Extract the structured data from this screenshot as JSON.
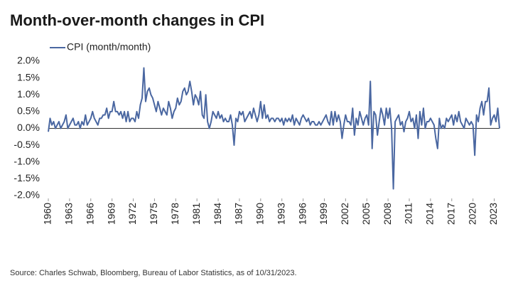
{
  "chart_data": {
    "type": "line",
    "title": "Month-over-month changes in CPI",
    "source": "Source: Charles Schwab, Bloomberg, Bureau of Labor Statistics, as of 10/31/2023.",
    "xlim": [
      1960,
      2023.75
    ],
    "xticks": [
      1960,
      1963,
      1966,
      1969,
      1972,
      1975,
      1978,
      1981,
      1984,
      1987,
      1990,
      1993,
      1996,
      1999,
      2002,
      2005,
      2008,
      2011,
      2014,
      2017,
      2020,
      2023
    ],
    "ylim": [
      -2.0,
      2.0
    ],
    "yticks": [
      {
        "value": 2.0,
        "label": "2.0%"
      },
      {
        "value": 1.5,
        "label": "1.5%"
      },
      {
        "value": 1.0,
        "label": "1.0%"
      },
      {
        "value": 0.5,
        "label": "0.5%"
      },
      {
        "value": 0.0,
        "label": "0.0%"
      },
      {
        "value": -0.5,
        "label": "-0.5%"
      },
      {
        "value": -1.0,
        "label": "-1.0%"
      },
      {
        "value": -1.5,
        "label": "-1.5%"
      },
      {
        "value": -2.0,
        "label": "-2.0%"
      }
    ],
    "legend": "top-left",
    "series": [
      {
        "name": "CPI (month/month)",
        "color": "#4a67a1",
        "x": [
          1960,
          1960.25,
          1960.5,
          1960.75,
          1961,
          1961.25,
          1961.5,
          1961.75,
          1962,
          1962.25,
          1962.5,
          1962.75,
          1963,
          1963.25,
          1963.5,
          1963.75,
          1964,
          1964.25,
          1964.5,
          1964.75,
          1965,
          1965.25,
          1965.5,
          1965.75,
          1966,
          1966.25,
          1966.5,
          1966.75,
          1967,
          1967.25,
          1967.5,
          1967.75,
          1968,
          1968.25,
          1968.5,
          1968.75,
          1969,
          1969.25,
          1969.5,
          1969.75,
          1970,
          1970.25,
          1970.5,
          1970.75,
          1971,
          1971.25,
          1971.5,
          1971.75,
          1972,
          1972.25,
          1972.5,
          1972.75,
          1973,
          1973.25,
          1973.5,
          1973.75,
          1974,
          1974.25,
          1974.5,
          1974.75,
          1975,
          1975.25,
          1975.5,
          1975.75,
          1976,
          1976.25,
          1976.5,
          1976.75,
          1977,
          1977.25,
          1977.5,
          1977.75,
          1978,
          1978.25,
          1978.5,
          1978.75,
          1979,
          1979.25,
          1979.5,
          1979.75,
          1980,
          1980.25,
          1980.5,
          1980.75,
          1981,
          1981.25,
          1981.5,
          1981.75,
          1982,
          1982.25,
          1982.5,
          1982.75,
          1983,
          1983.25,
          1983.5,
          1983.75,
          1984,
          1984.25,
          1984.5,
          1984.75,
          1985,
          1985.25,
          1985.5,
          1985.75,
          1986,
          1986.25,
          1986.5,
          1986.75,
          1987,
          1987.25,
          1987.5,
          1987.75,
          1988,
          1988.25,
          1988.5,
          1988.75,
          1989,
          1989.25,
          1989.5,
          1989.75,
          1990,
          1990.25,
          1990.5,
          1990.75,
          1991,
          1991.25,
          1991.5,
          1991.75,
          1992,
          1992.25,
          1992.5,
          1992.75,
          1993,
          1993.25,
          1993.5,
          1993.75,
          1994,
          1994.25,
          1994.5,
          1994.75,
          1995,
          1995.25,
          1995.5,
          1995.75,
          1996,
          1996.25,
          1996.5,
          1996.75,
          1997,
          1997.25,
          1997.5,
          1997.75,
          1998,
          1998.25,
          1998.5,
          1998.75,
          1999,
          1999.25,
          1999.5,
          1999.75,
          2000,
          2000.25,
          2000.5,
          2000.75,
          2001,
          2001.25,
          2001.5,
          2001.75,
          2002,
          2002.25,
          2002.5,
          2002.75,
          2003,
          2003.25,
          2003.5,
          2003.75,
          2004,
          2004.25,
          2004.5,
          2004.75,
          2005,
          2005.25,
          2005.5,
          2005.75,
          2006,
          2006.25,
          2006.5,
          2006.75,
          2007,
          2007.25,
          2007.5,
          2007.75,
          2008,
          2008.25,
          2008.5,
          2008.75,
          2009,
          2009.25,
          2009.5,
          2009.75,
          2010,
          2010.25,
          2010.5,
          2010.75,
          2011,
          2011.25,
          2011.5,
          2011.75,
          2012,
          2012.25,
          2012.5,
          2012.75,
          2013,
          2013.25,
          2013.5,
          2013.75,
          2014,
          2014.25,
          2014.5,
          2014.75,
          2015,
          2015.25,
          2015.5,
          2015.75,
          2016,
          2016.25,
          2016.5,
          2016.75,
          2017,
          2017.25,
          2017.5,
          2017.75,
          2018,
          2018.25,
          2018.5,
          2018.75,
          2019,
          2019.25,
          2019.5,
          2019.75,
          2020,
          2020.25,
          2020.5,
          2020.75,
          2021,
          2021.25,
          2021.5,
          2021.75,
          2022,
          2022.25,
          2022.5,
          2022.75,
          2023,
          2023.25,
          2023.5,
          2023.75
        ],
        "values": [
          -0.1,
          0.3,
          0.1,
          0.2,
          0.0,
          0.1,
          0.2,
          0.0,
          0.1,
          0.2,
          0.4,
          0.0,
          0.1,
          0.2,
          0.3,
          0.1,
          0.1,
          0.2,
          0.0,
          0.2,
          0.1,
          0.4,
          0.1,
          0.2,
          0.3,
          0.5,
          0.3,
          0.2,
          0.1,
          0.3,
          0.3,
          0.4,
          0.4,
          0.6,
          0.3,
          0.5,
          0.5,
          0.8,
          0.5,
          0.5,
          0.4,
          0.5,
          0.3,
          0.5,
          0.2,
          0.5,
          0.2,
          0.3,
          0.3,
          0.2,
          0.5,
          0.3,
          0.7,
          0.9,
          1.8,
          0.8,
          1.1,
          1.2,
          1.0,
          0.9,
          0.7,
          0.5,
          0.8,
          0.6,
          0.4,
          0.6,
          0.5,
          0.4,
          0.8,
          0.6,
          0.3,
          0.5,
          0.6,
          0.9,
          0.7,
          0.8,
          1.1,
          1.2,
          1.0,
          1.1,
          1.4,
          1.1,
          0.7,
          1.0,
          0.9,
          0.7,
          1.1,
          0.4,
          0.3,
          1.0,
          0.2,
          0.0,
          0.2,
          0.5,
          0.4,
          0.3,
          0.5,
          0.3,
          0.4,
          0.2,
          0.3,
          0.2,
          0.2,
          0.4,
          0.1,
          -0.5,
          0.3,
          0.2,
          0.5,
          0.4,
          0.5,
          0.2,
          0.3,
          0.4,
          0.5,
          0.3,
          0.6,
          0.4,
          0.2,
          0.4,
          0.8,
          0.3,
          0.7,
          0.3,
          0.4,
          0.2,
          0.3,
          0.3,
          0.2,
          0.3,
          0.3,
          0.2,
          0.3,
          0.1,
          0.3,
          0.2,
          0.3,
          0.2,
          0.4,
          0.1,
          0.3,
          0.2,
          0.1,
          0.3,
          0.4,
          0.3,
          0.2,
          0.3,
          0.1,
          0.2,
          0.2,
          0.1,
          0.1,
          0.2,
          0.1,
          0.2,
          0.3,
          0.4,
          0.2,
          0.1,
          0.5,
          0.1,
          0.5,
          0.2,
          0.4,
          0.2,
          -0.3,
          0.1,
          0.4,
          0.2,
          0.2,
          0.1,
          0.6,
          -0.2,
          0.3,
          0.1,
          0.5,
          0.3,
          0.1,
          0.3,
          0.4,
          0.1,
          1.4,
          -0.6,
          0.5,
          0.4,
          -0.2,
          0.2,
          0.6,
          0.4,
          0.1,
          0.6,
          0.3,
          0.6,
          0.0,
          -1.8,
          0.2,
          0.3,
          0.4,
          0.1,
          0.2,
          -0.1,
          0.2,
          0.3,
          0.5,
          0.2,
          0.3,
          0.0,
          0.4,
          -0.3,
          0.5,
          0.1,
          0.6,
          0.0,
          0.2,
          0.2,
          0.3,
          0.2,
          0.1,
          -0.3,
          -0.6,
          0.3,
          0.0,
          0.1,
          0.0,
          0.3,
          0.2,
          0.3,
          0.4,
          0.1,
          0.4,
          0.2,
          0.5,
          0.2,
          0.1,
          0.0,
          0.3,
          0.2,
          0.1,
          0.2,
          0.1,
          -0.8,
          0.4,
          0.2,
          0.6,
          0.8,
          0.4,
          0.8,
          0.8,
          1.2,
          0.1,
          0.3,
          0.4,
          0.2,
          0.6,
          0.0
        ]
      }
    ]
  }
}
